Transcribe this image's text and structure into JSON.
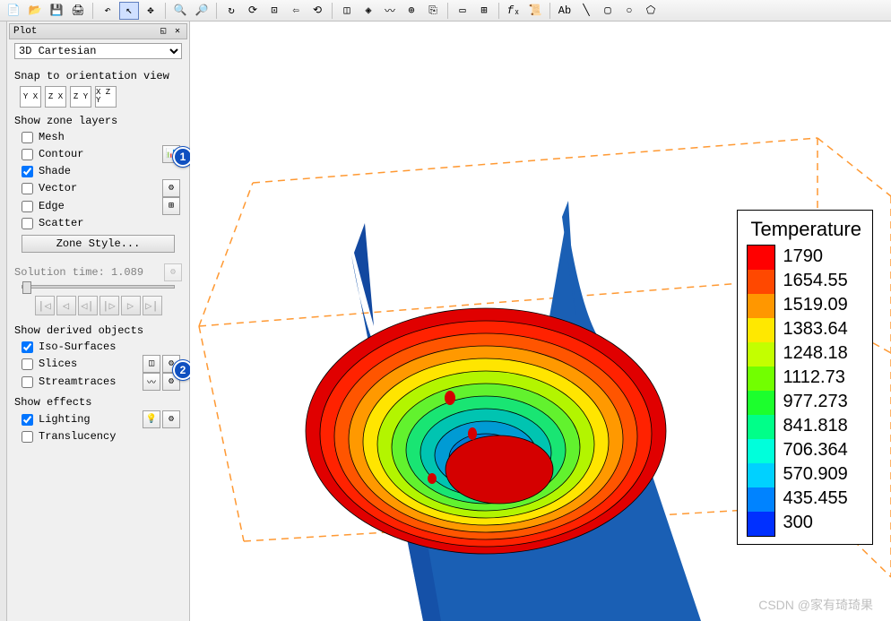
{
  "panel": {
    "title": "Plot",
    "plot_type": "3D Cartesian",
    "snap_label": "Snap to orientation view",
    "orient_buttons": [
      "Y X",
      "Z X",
      "Z Y",
      "X Z Y"
    ],
    "zone_layers_label": "Show zone layers",
    "zone_layers": [
      {
        "label": "Mesh",
        "checked": false
      },
      {
        "label": "Contour",
        "checked": false
      },
      {
        "label": "Shade",
        "checked": true
      },
      {
        "label": "Vector",
        "checked": false
      },
      {
        "label": "Edge",
        "checked": false
      },
      {
        "label": "Scatter",
        "checked": false
      }
    ],
    "zone_style_label": "Zone Style...",
    "solution_time_label": "Solution time:",
    "solution_time_value": "1.089",
    "derived_label": "Show derived objects",
    "derived": [
      {
        "label": "Iso-Surfaces",
        "checked": true
      },
      {
        "label": "Slices",
        "checked": false
      },
      {
        "label": "Streamtraces",
        "checked": false
      }
    ],
    "effects_label": "Show effects",
    "effects": [
      {
        "label": "Lighting",
        "checked": true
      },
      {
        "label": "Translucency",
        "checked": false
      }
    ]
  },
  "badges": {
    "one": "1",
    "two": "2"
  },
  "legend": {
    "title": "Temperature",
    "entries": [
      {
        "color": "#ff0000",
        "value": "1790"
      },
      {
        "color": "#ff4800",
        "value": "1654.55"
      },
      {
        "color": "#ff9700",
        "value": "1519.09"
      },
      {
        "color": "#ffe800",
        "value": "1383.64"
      },
      {
        "color": "#c3ff00",
        "value": "1248.18"
      },
      {
        "color": "#72ff00",
        "value": "1112.73"
      },
      {
        "color": "#1cff2d",
        "value": "977.273"
      },
      {
        "color": "#00ff89",
        "value": "841.818"
      },
      {
        "color": "#00ffdb",
        "value": "706.364"
      },
      {
        "color": "#00d1ff",
        "value": "570.909"
      },
      {
        "color": "#0083ff",
        "value": "435.455"
      },
      {
        "color": "#0030ff",
        "value": "300"
      }
    ]
  },
  "viz": {
    "background": "#ffffff",
    "bbox_color": "#ff9933",
    "body_color": "#1a5fb4",
    "body_shade": "#1248a0",
    "contour_bands": [
      "#007bd4",
      "#009bd4",
      "#00c4b1",
      "#19e573",
      "#62f22e",
      "#b3f500",
      "#ffe500",
      "#ff9900",
      "#ff5500",
      "#ff2200",
      "#e00000"
    ],
    "contour_line": "#000000"
  },
  "watermark": "CSDN @家有琦琦果"
}
